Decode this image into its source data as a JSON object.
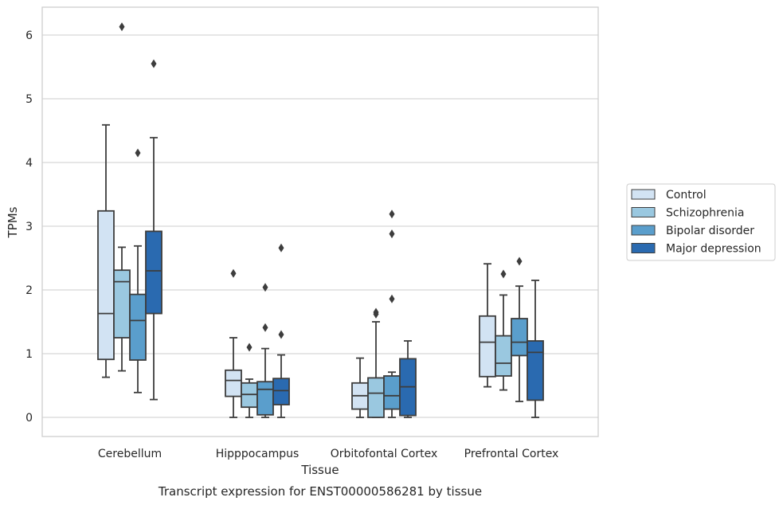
{
  "chart_data": {
    "type": "box",
    "title": "",
    "caption": "Transcript expression for ENST00000586281 by tissue",
    "xlabel": "Tissue",
    "ylabel": "TPMs",
    "ylim": [
      -0.3,
      6.45
    ],
    "yticks": [
      0,
      1,
      2,
      3,
      4,
      5,
      6
    ],
    "grid": "horizontal",
    "legend_position": "center-right outside",
    "categories": [
      "Cerebellum",
      "Hipppocampus",
      "Orbitofontal Cortex",
      "Prefrontal Cortex"
    ],
    "series": [
      {
        "name": "Control",
        "color": "#d2e3f3",
        "boxes": [
          {
            "whislo": 0.63,
            "q1": 0.91,
            "med": 1.63,
            "q3": 3.24,
            "whishi": 4.59,
            "fliers": []
          },
          {
            "whislo": 0.0,
            "q1": 0.33,
            "med": 0.58,
            "q3": 0.74,
            "whishi": 1.25,
            "fliers": [
              2.26
            ]
          },
          {
            "whislo": 0.0,
            "q1": 0.13,
            "med": 0.34,
            "q3": 0.54,
            "whishi": 0.93,
            "fliers": []
          },
          {
            "whislo": 0.48,
            "q1": 0.64,
            "med": 1.18,
            "q3": 1.59,
            "whishi": 2.41,
            "fliers": []
          }
        ]
      },
      {
        "name": "Schizophrenia",
        "color": "#9ac8e0",
        "boxes": [
          {
            "whislo": 0.73,
            "q1": 1.25,
            "med": 2.13,
            "q3": 2.31,
            "whishi": 2.67,
            "fliers": [
              6.13
            ]
          },
          {
            "whislo": 0.0,
            "q1": 0.16,
            "med": 0.36,
            "q3": 0.54,
            "whishi": 0.6,
            "fliers": [
              1.1
            ]
          },
          {
            "whislo": 0.0,
            "q1": 0.0,
            "med": 0.38,
            "q3": 0.62,
            "whishi": 1.5,
            "fliers": [
              1.62,
              1.65
            ]
          },
          {
            "whislo": 0.43,
            "q1": 0.65,
            "med": 0.85,
            "q3": 1.28,
            "whishi": 1.92,
            "fliers": [
              2.25
            ]
          }
        ]
      },
      {
        "name": "Bipolar disorder",
        "color": "#5a9ecc",
        "boxes": [
          {
            "whislo": 0.39,
            "q1": 0.9,
            "med": 1.52,
            "q3": 1.93,
            "whishi": 2.69,
            "fliers": [
              4.15
            ]
          },
          {
            "whislo": 0.0,
            "q1": 0.04,
            "med": 0.44,
            "q3": 0.56,
            "whishi": 1.08,
            "fliers": [
              1.41,
              2.04
            ]
          },
          {
            "whislo": 0.0,
            "q1": 0.13,
            "med": 0.34,
            "q3": 0.65,
            "whishi": 0.71,
            "fliers": [
              1.86,
              2.88,
              3.19
            ]
          },
          {
            "whislo": 0.25,
            "q1": 0.97,
            "med": 1.18,
            "q3": 1.55,
            "whishi": 2.06,
            "fliers": [
              2.45
            ]
          }
        ]
      },
      {
        "name": "Major depression",
        "color": "#2a6ab0",
        "boxes": [
          {
            "whislo": 0.28,
            "q1": 1.63,
            "med": 2.3,
            "q3": 2.92,
            "whishi": 4.39,
            "fliers": [
              5.55
            ]
          },
          {
            "whislo": 0.0,
            "q1": 0.2,
            "med": 0.42,
            "q3": 0.61,
            "whishi": 0.98,
            "fliers": [
              1.3,
              2.66
            ]
          },
          {
            "whislo": 0.0,
            "q1": 0.03,
            "med": 0.48,
            "q3": 0.92,
            "whishi": 1.2,
            "fliers": []
          },
          {
            "whislo": 0.0,
            "q1": 0.27,
            "med": 1.02,
            "q3": 1.2,
            "whishi": 2.15,
            "fliers": []
          }
        ]
      }
    ]
  }
}
